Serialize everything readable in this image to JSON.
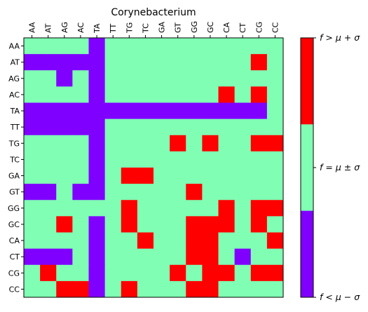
{
  "chart_data": {
    "type": "heatmap",
    "title": "Corynebacterium",
    "x_labels": [
      "AA",
      "AT",
      "AG",
      "AC",
      "TA",
      "TT",
      "TG",
      "TC",
      "GA",
      "GT",
      "GG",
      "GC",
      "CA",
      "CT",
      "CG",
      "CC"
    ],
    "y_labels": [
      "AA",
      "AT",
      "AG",
      "AC",
      "TA",
      "TT",
      "TG",
      "TC",
      "GA",
      "GT",
      "GG",
      "GC",
      "CA",
      "CT",
      "CG",
      "CC"
    ],
    "levels": [
      -1,
      0,
      1
    ],
    "level_colors": {
      "-1": "#8000ff",
      "0": "#80ffb4",
      "1": "#ff0000"
    },
    "colorbar_labels": [
      "f < μ − σ",
      "f = μ ± σ",
      "f > μ + σ"
    ],
    "matrix": [
      [
        0,
        0,
        0,
        0,
        -1,
        0,
        0,
        0,
        0,
        0,
        0,
        0,
        0,
        0,
        0,
        0
      ],
      [
        -1,
        -1,
        -1,
        -1,
        -1,
        0,
        0,
        0,
        0,
        0,
        0,
        0,
        0,
        0,
        1,
        0
      ],
      [
        0,
        0,
        -1,
        0,
        -1,
        0,
        0,
        0,
        0,
        0,
        0,
        0,
        0,
        0,
        0,
        0
      ],
      [
        0,
        0,
        0,
        0,
        -1,
        0,
        0,
        0,
        0,
        0,
        0,
        0,
        1,
        0,
        1,
        0
      ],
      [
        -1,
        -1,
        -1,
        -1,
        -1,
        -1,
        -1,
        -1,
        -1,
        -1,
        -1,
        -1,
        -1,
        -1,
        -1,
        0
      ],
      [
        -1,
        -1,
        -1,
        -1,
        -1,
        0,
        0,
        0,
        0,
        0,
        0,
        0,
        0,
        0,
        0,
        0
      ],
      [
        0,
        0,
        0,
        0,
        -1,
        0,
        0,
        0,
        0,
        1,
        0,
        1,
        0,
        0,
        1,
        1
      ],
      [
        0,
        0,
        0,
        0,
        -1,
        0,
        0,
        0,
        0,
        0,
        0,
        0,
        0,
        0,
        0,
        0
      ],
      [
        0,
        0,
        0,
        0,
        -1,
        0,
        1,
        1,
        0,
        0,
        0,
        0,
        0,
        0,
        0,
        0
      ],
      [
        -1,
        -1,
        0,
        -1,
        -1,
        0,
        0,
        0,
        0,
        0,
        1,
        0,
        0,
        0,
        0,
        0
      ],
      [
        0,
        0,
        0,
        0,
        0,
        0,
        1,
        0,
        0,
        0,
        0,
        0,
        1,
        0,
        1,
        1
      ],
      [
        0,
        0,
        1,
        0,
        -1,
        0,
        1,
        0,
        0,
        0,
        1,
        1,
        1,
        0,
        1,
        0
      ],
      [
        0,
        0,
        0,
        0,
        -1,
        0,
        0,
        1,
        0,
        0,
        1,
        1,
        0,
        0,
        0,
        1
      ],
      [
        -1,
        -1,
        -1,
        0,
        -1,
        0,
        0,
        0,
        0,
        0,
        1,
        1,
        0,
        -1,
        0,
        0
      ],
      [
        0,
        1,
        0,
        0,
        -1,
        0,
        0,
        0,
        0,
        1,
        0,
        1,
        1,
        0,
        1,
        1
      ],
      [
        0,
        0,
        1,
        1,
        -1,
        0,
        1,
        0,
        0,
        0,
        1,
        1,
        0,
        0,
        0,
        0
      ]
    ]
  }
}
